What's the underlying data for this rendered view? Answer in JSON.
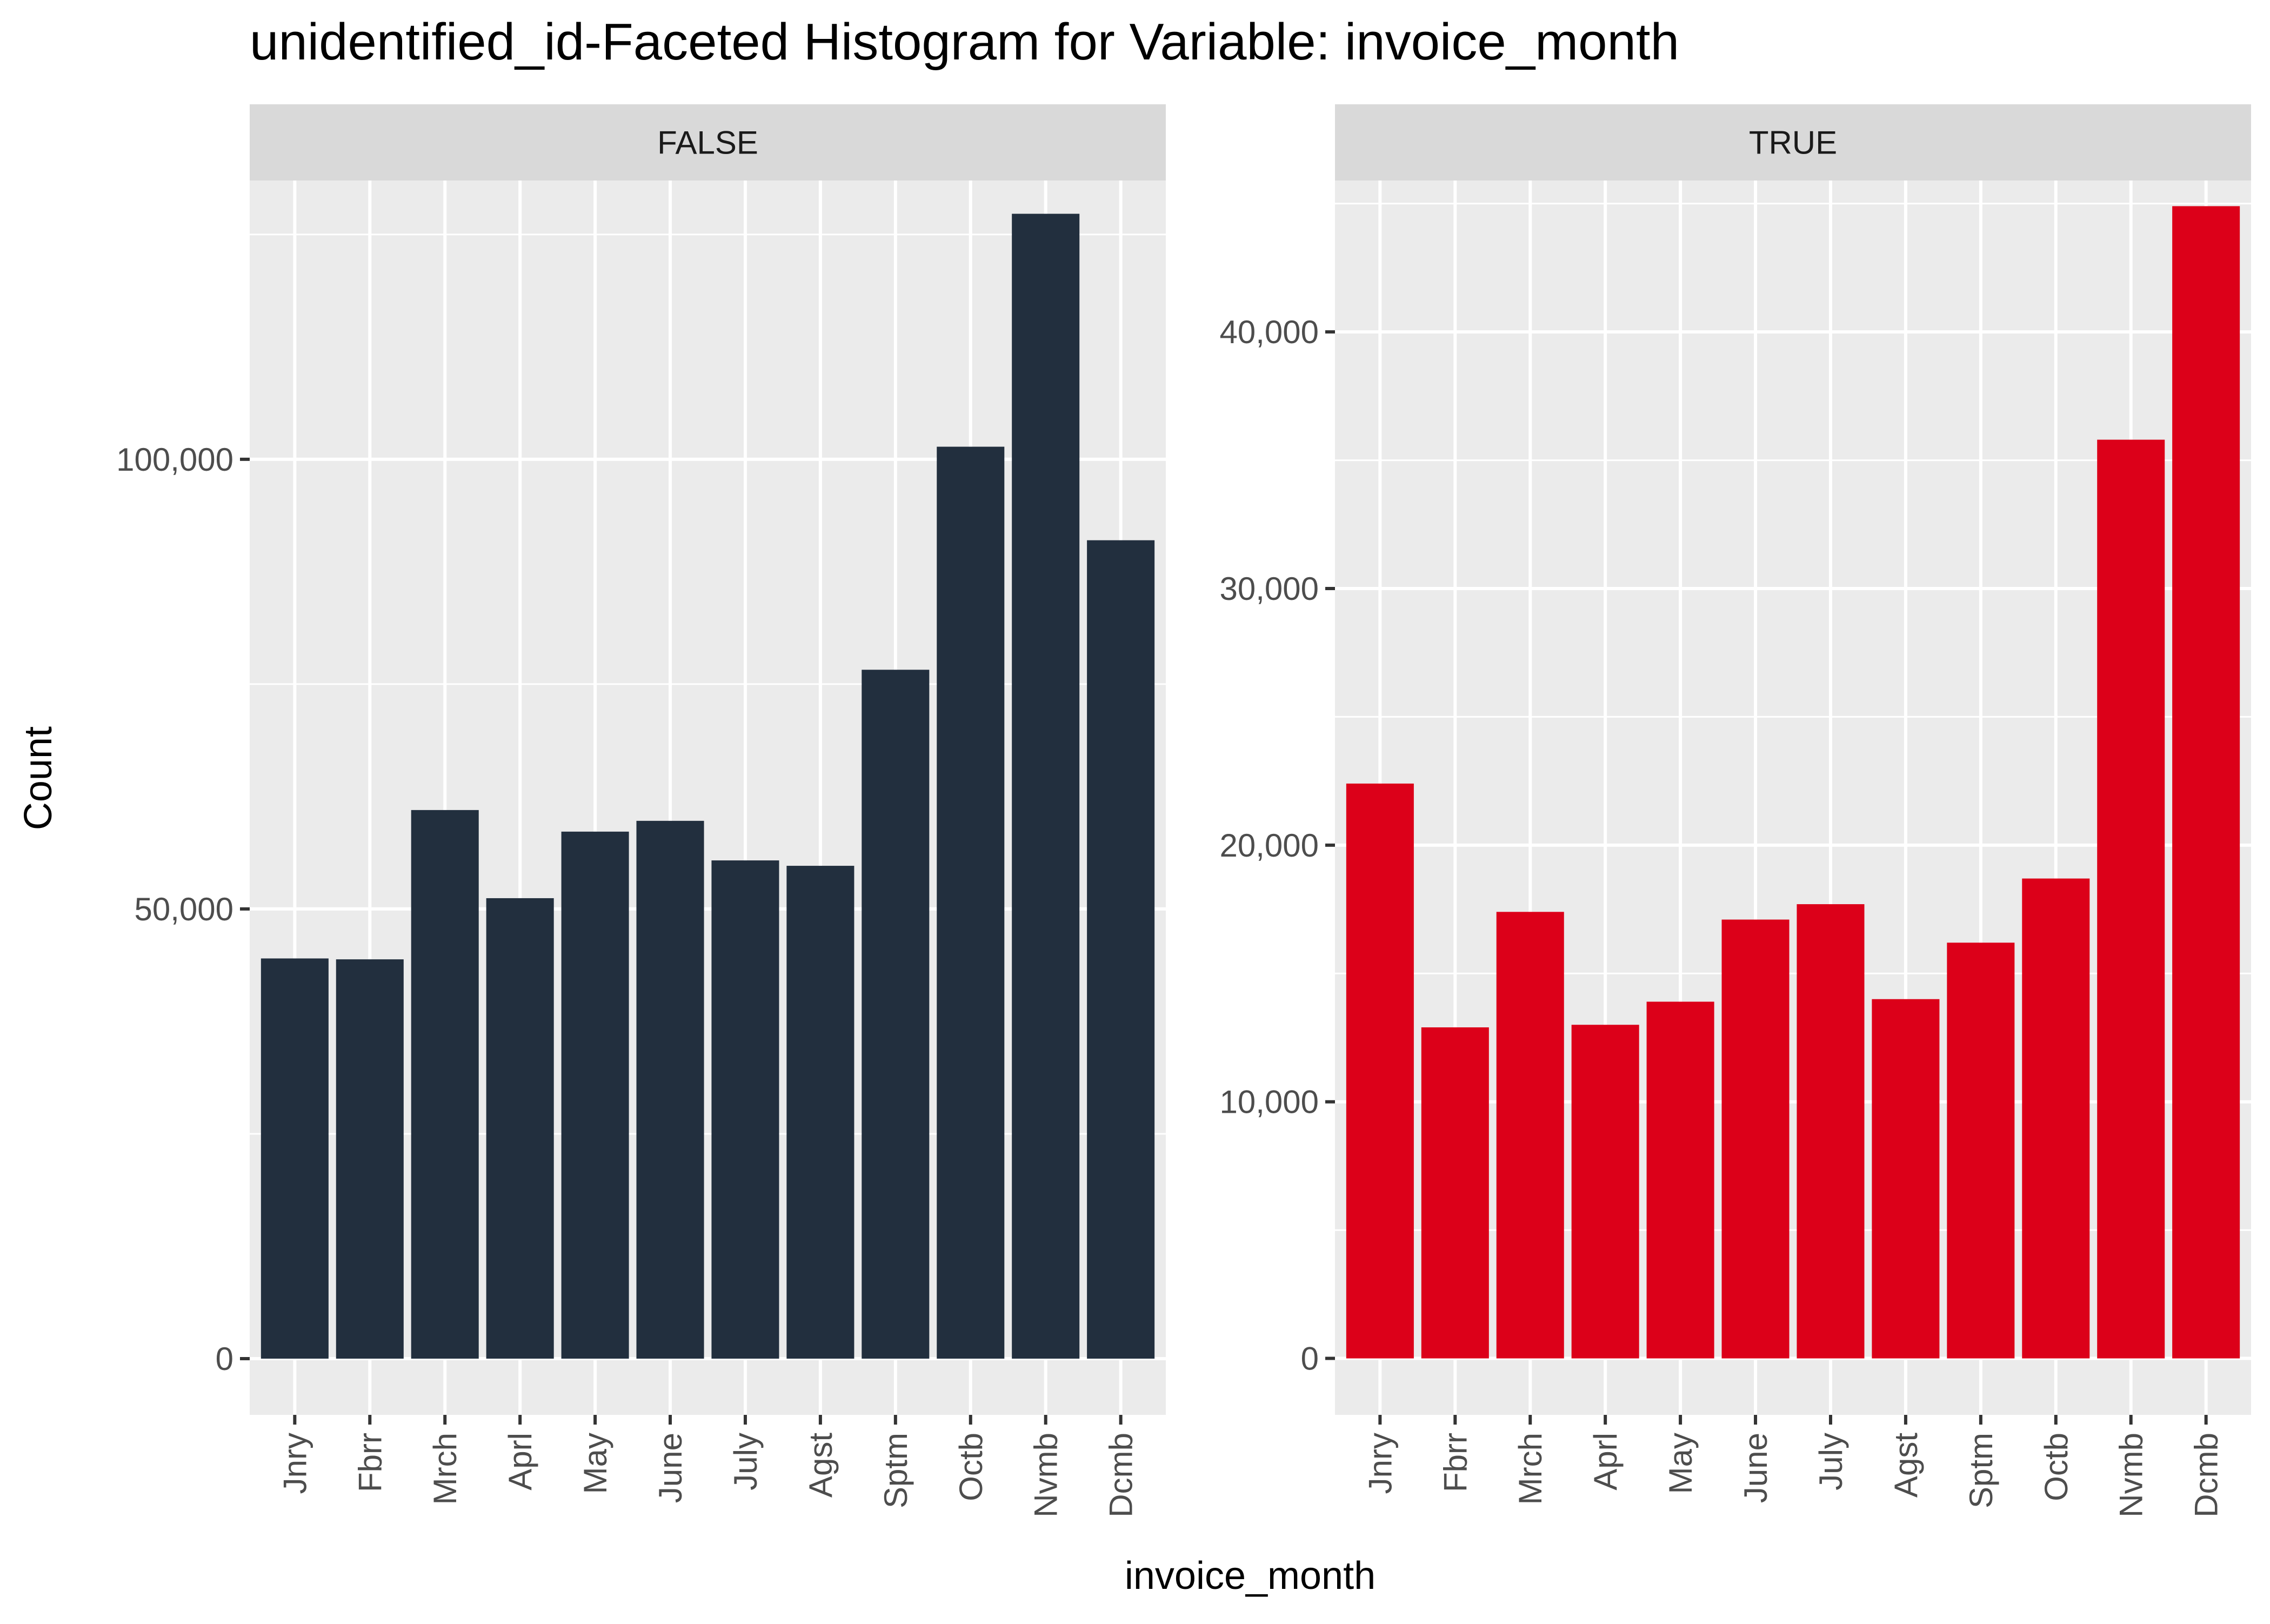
{
  "chart_data": {
    "type": "bar",
    "title": "unidentified_id-Faceted Histogram for Variable: invoice_month",
    "xlabel": "invoice_month",
    "ylabel": "Count",
    "categories": [
      "Jnry",
      "Fbrr",
      "Mrch",
      "Aprl",
      "May",
      "June",
      "July",
      "Agst",
      "Sptm",
      "Octb",
      "Nvmb",
      "Dcmb"
    ],
    "grid": true,
    "legend": "none",
    "facets": [
      {
        "label": "FALSE",
        "color": "#222F3E",
        "ylim": [
          -6250,
          131000
        ],
        "yticks": [
          0,
          50000,
          100000
        ],
        "ytick_labels": [
          "0",
          "50,000",
          "100,000"
        ],
        "values": [
          44500,
          44400,
          61000,
          51200,
          58600,
          59800,
          55400,
          54800,
          76600,
          101400,
          127300,
          91000
        ]
      },
      {
        "label": "TRUE",
        "color": "#DC0019",
        "ylim": [
          -2200,
          45900
        ],
        "yticks": [
          0,
          10000,
          20000,
          30000,
          40000
        ],
        "ytick_labels": [
          "0",
          "10,000",
          "20,000",
          "30,000",
          "40,000"
        ],
        "values": [
          22400,
          12900,
          17400,
          13000,
          13900,
          17100,
          17700,
          14000,
          16200,
          18700,
          35800,
          44900
        ]
      }
    ]
  }
}
